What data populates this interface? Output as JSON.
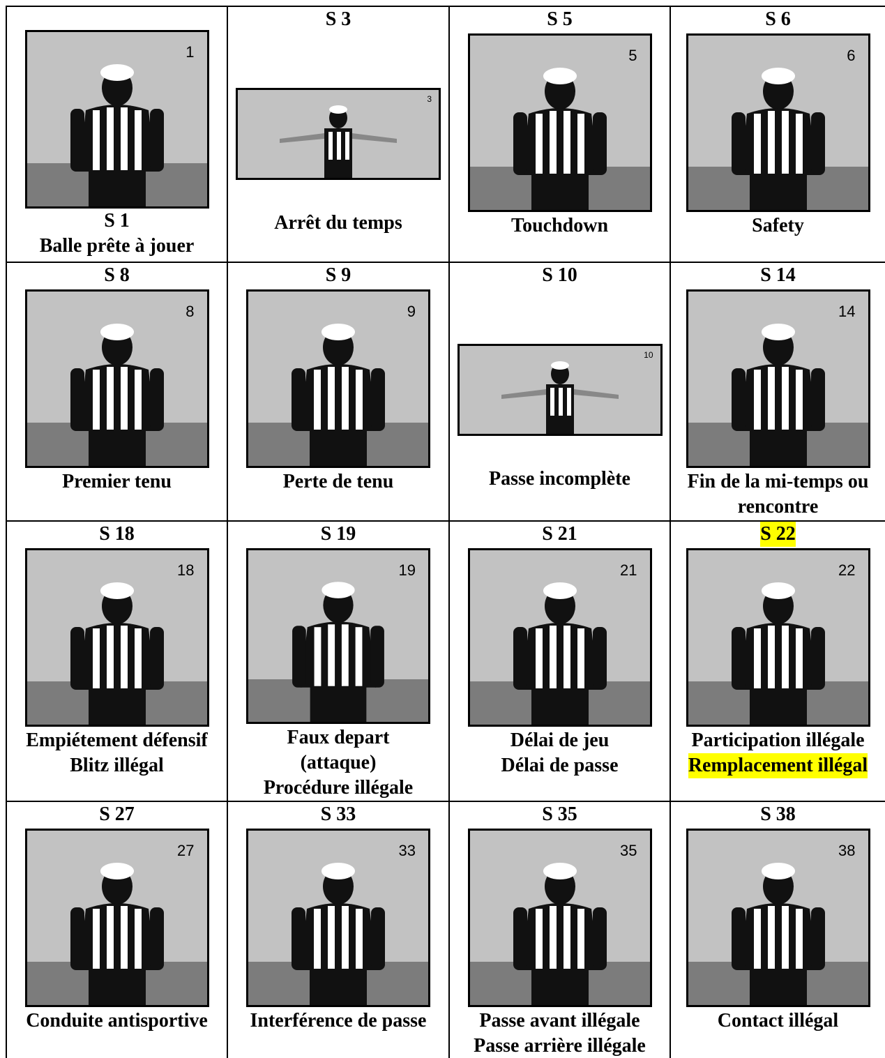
{
  "cells": [
    {
      "code": "S 1",
      "image_number": "1",
      "caption": [
        "Balle prête à jouer"
      ]
    },
    {
      "code": "S 3",
      "image_number": "3",
      "caption": [
        "Arrêt du temps"
      ]
    },
    {
      "code": "S 5",
      "image_number": "5",
      "caption": [
        "Touchdown"
      ]
    },
    {
      "code": "S 6",
      "image_number": "6",
      "caption": [
        "Safety"
      ]
    },
    {
      "code": "S 8",
      "image_number": "8",
      "caption": [
        "Premier tenu"
      ]
    },
    {
      "code": "S 9",
      "image_number": "9",
      "caption": [
        "Perte de tenu"
      ]
    },
    {
      "code": "S 10",
      "image_number": "10",
      "caption": [
        "Passe incomplète"
      ]
    },
    {
      "code": "S 14",
      "image_number": "14",
      "caption": [
        "Fin de la mi-temps ou",
        "rencontre"
      ]
    },
    {
      "code": "S 18",
      "image_number": "18",
      "caption": [
        "Empiétement défensif",
        "Blitz illégal"
      ]
    },
    {
      "code": "S 19",
      "image_number": "19",
      "caption": [
        "Faux depart",
        "(attaque)",
        "Procédure illégale"
      ]
    },
    {
      "code": "S 21",
      "image_number": "21",
      "caption": [
        "Délai de jeu",
        "Délai de passe"
      ]
    },
    {
      "code": "S 22",
      "image_number": "22",
      "caption": [
        "Participation illégale",
        "Remplacement illégal"
      ],
      "highlight_code": true,
      "highlight_caption_lines": [
        1
      ]
    },
    {
      "code": "S 27",
      "image_number": "27",
      "caption": [
        "Conduite antisportive"
      ]
    },
    {
      "code": "S 33",
      "image_number": "33",
      "caption": [
        "Interférence de passe"
      ]
    },
    {
      "code": "S 35",
      "image_number": "35",
      "caption": [
        "Passe avant illégale",
        "Passe arrière illégale"
      ]
    },
    {
      "code": "S 38",
      "image_number": "38",
      "caption": [
        "Contact illégal"
      ]
    }
  ]
}
